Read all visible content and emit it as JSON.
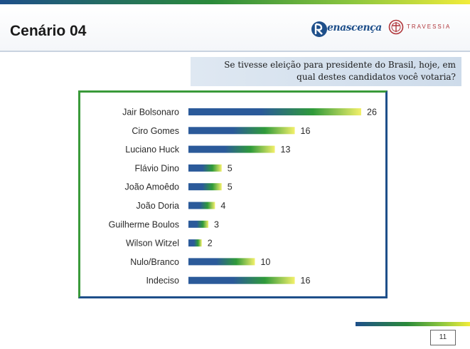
{
  "header": {
    "title": "Cenário 04",
    "logo_renascenca_text": "enascença",
    "logo_travessia_text": "TRAVESSIA"
  },
  "question": {
    "line1": "Se tivesse eleição para presidente do Brasil, hoje, em",
    "line2": "qual destes candidatos você votaria?"
  },
  "chart_data": {
    "type": "bar",
    "orientation": "horizontal",
    "categories": [
      "Jair Bolsonaro",
      "Ciro Gomes",
      "Luciano Huck",
      "Flávio Dino",
      "João Amoêdo",
      "João Doria",
      "Guilherme Boulos",
      "Wilson Witzel",
      "Nulo/Branco",
      "Indeciso"
    ],
    "values": [
      26,
      16,
      13,
      5,
      5,
      4,
      3,
      2,
      10,
      16
    ],
    "title": "",
    "xlabel": "",
    "ylabel": "",
    "xlim": [
      0,
      26
    ],
    "grid": false,
    "legend": "none",
    "data_labels": true
  },
  "colors": {
    "bar_start": "#2b5a9a",
    "bar_mid": "#2f9a3a",
    "bar_end": "#f3f06a",
    "frame_green": "#3a9a3a",
    "frame_blue": "#1e4f8a"
  },
  "footer": {
    "page_number": "11"
  }
}
